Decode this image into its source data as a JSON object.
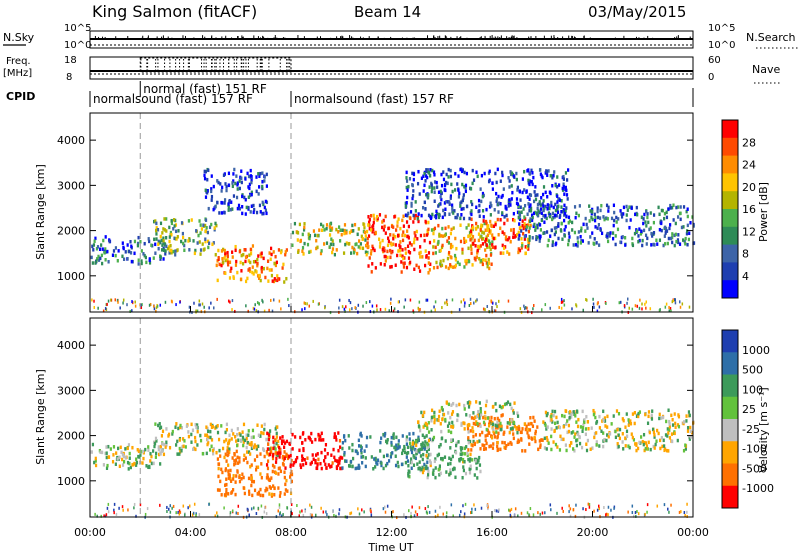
{
  "header": {
    "radar": "King Salmon (fitACF)",
    "beam": "Beam 14",
    "date": "03/May/2015"
  },
  "status_panel": {
    "nsky_label": "N.Sky",
    "nsky_ticks": [
      "10^5",
      "10^0"
    ],
    "nsearch_label": "N.Search",
    "nsearch_ticks": [
      "10^5",
      "10^0"
    ],
    "freq_label": [
      "Freq.",
      "[MHz]"
    ],
    "freq_ticks": [
      18,
      8
    ],
    "nave_label": "Nave",
    "nave_ticks": [
      60,
      0
    ],
    "cpid_label": "CPID",
    "cpid_segments": [
      {
        "label": "normalsound (fast) 157 RF",
        "start_hour": 0.0,
        "end_hour": 8.0
      },
      {
        "label": "normal (fast) 151 RF",
        "start_hour": 2.0,
        "end_hour": 8.0
      },
      {
        "label": "normalsound (fast) 157 RF",
        "start_hour": 8.0,
        "end_hour": 24.0
      }
    ]
  },
  "colorbars": {
    "power": {
      "label": "Power [dB]",
      "ticks": [
        "28",
        "24",
        "20",
        "16",
        "12",
        "8",
        "4"
      ],
      "colors": [
        "#ff0000",
        "#ff4a00",
        "#ff8c00",
        "#ffc400",
        "#b4b400",
        "#4cb04c",
        "#2e8b57",
        "#3d64a8",
        "#1f3fb0",
        "#0000ff"
      ]
    },
    "velocity": {
      "label": "Velocity [m s⁻¹]",
      "ticks": [
        "1000",
        "500",
        "100",
        "25",
        "-25",
        "-100",
        "-500",
        "-1000"
      ],
      "colors": [
        "#1f3fb0",
        "#2e6fa8",
        "#3c9a5a",
        "#62c23c",
        "#bfbfbf",
        "#ffa500",
        "#ff7000",
        "#ff0000"
      ]
    }
  },
  "chart_data": [
    {
      "type": "heatmap",
      "panel": "power",
      "ylabel": "Slant Range [km]",
      "xlabel": "",
      "xlim": [
        0,
        24
      ],
      "ylim": [
        200,
        4600
      ],
      "yticks": [
        "4000",
        "3000",
        "2000",
        "1000"
      ],
      "ytick_values": [
        4000,
        3000,
        2000,
        1000
      ],
      "regions": [
        {
          "t0": 0.0,
          "t1": 3.0,
          "r0": 1300,
          "r1": 1900,
          "level": 2
        },
        {
          "t0": 2.5,
          "t1": 5.0,
          "r0": 1500,
          "r1": 2300,
          "level": 4
        },
        {
          "t0": 5.0,
          "t1": 7.8,
          "r0": 900,
          "r1": 1700,
          "level": 7
        },
        {
          "t0": 8.0,
          "t1": 11.0,
          "r0": 1500,
          "r1": 2200,
          "level": 5
        },
        {
          "t0": 11.0,
          "t1": 13.5,
          "r0": 1100,
          "r1": 2400,
          "level": 8
        },
        {
          "t0": 13.5,
          "t1": 16.0,
          "r0": 1200,
          "r1": 2200,
          "level": 6
        },
        {
          "t0": 15.0,
          "t1": 17.5,
          "r0": 1500,
          "r1": 2300,
          "level": 8
        },
        {
          "t0": 17.0,
          "t1": 24.0,
          "r0": 1700,
          "r1": 2600,
          "level": 2
        },
        {
          "t0": 4.5,
          "t1": 7.0,
          "r0": 2400,
          "r1": 3400,
          "level": 1
        },
        {
          "t0": 12.5,
          "t1": 19.0,
          "r0": 2300,
          "r1": 3400,
          "level": 1
        }
      ]
    },
    {
      "type": "heatmap",
      "panel": "velocity",
      "ylabel": "Slant Range [km]",
      "xlabel": "Time UT",
      "xlim": [
        0,
        24
      ],
      "ylim": [
        200,
        4600
      ],
      "yticks": [
        "4000",
        "3000",
        "2000",
        "1000"
      ],
      "ytick_values": [
        4000,
        3000,
        2000,
        1000
      ],
      "xticks": [
        "00:00",
        "04:00",
        "08:00",
        "12:00",
        "16:00",
        "20:00",
        "00:00"
      ],
      "xtick_values": [
        0,
        4,
        8,
        12,
        16,
        20,
        24
      ],
      "regions": [
        {
          "t0": 0.0,
          "t1": 3.0,
          "r0": 1300,
          "r1": 1900,
          "vel": 0
        },
        {
          "t0": 2.5,
          "t1": 7.5,
          "r0": 1600,
          "r1": 2300,
          "vel": 0
        },
        {
          "t0": 5.0,
          "t1": 8.0,
          "r0": 700,
          "r1": 1700,
          "vel": -300
        },
        {
          "t0": 7.0,
          "t1": 10.0,
          "r0": 1300,
          "r1": 2100,
          "vel": -700
        },
        {
          "t0": 10.0,
          "t1": 13.5,
          "r0": 1300,
          "r1": 2100,
          "vel": 300
        },
        {
          "t0": 12.5,
          "t1": 15.5,
          "r0": 1100,
          "r1": 2000,
          "vel": 80
        },
        {
          "t0": 15.0,
          "t1": 18.0,
          "r0": 1700,
          "r1": 2500,
          "vel": -300
        },
        {
          "t0": 13.0,
          "t1": 17.0,
          "r0": 2100,
          "r1": 2800,
          "vel": 0
        },
        {
          "t0": 18.0,
          "t1": 24.0,
          "r0": 1700,
          "r1": 2600,
          "vel": 0
        }
      ]
    }
  ]
}
